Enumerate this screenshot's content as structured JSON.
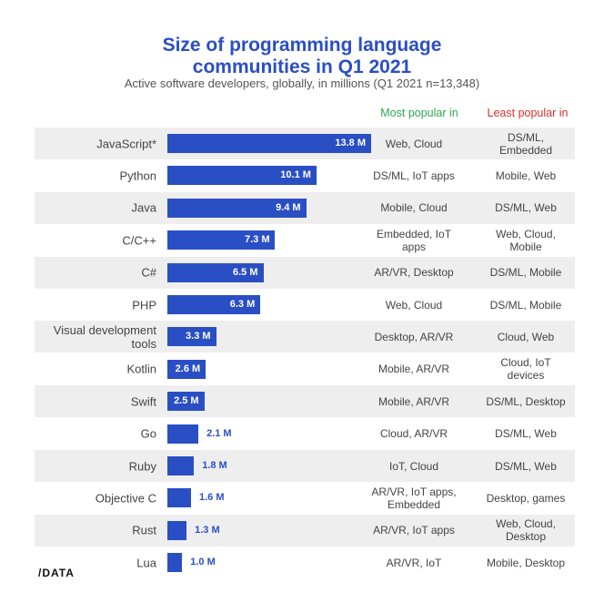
{
  "chart_data": {
    "type": "bar",
    "orientation": "horizontal",
    "title": "Size of programming language communities in Q1 2021",
    "title_lines": [
      "Size of programming language",
      "communities in Q1 2021"
    ],
    "subtitle": "Active software developers, globally, in millions (Q1 2021 n=13,348)",
    "unit_suffix": " M",
    "columns": {
      "most": "Most popular in",
      "least": "Least popular in"
    },
    "categories": [
      "JavaScript*",
      "Python",
      "Java",
      "C/C++",
      "C#",
      "PHP",
      "Visual development tools",
      "Kotlin",
      "Swift",
      "Go",
      "Ruby",
      "Objective C",
      "Rust",
      "Lua"
    ],
    "values": [
      13.8,
      10.1,
      9.4,
      7.3,
      6.5,
      6.3,
      3.3,
      2.6,
      2.5,
      2.1,
      1.8,
      1.6,
      1.3,
      1.0
    ],
    "labels": [
      "13.8 M",
      "10.1 M",
      "9.4 M",
      "7.3 M",
      "6.5 M",
      "6.3 M",
      "3.3 M",
      "2.6 M",
      "2.5 M",
      "2.1 M",
      "1.8 M",
      "1.6 M",
      "1.3 M",
      "1.0 M"
    ],
    "most_popular": [
      "Web, Cloud",
      "DS/ML, IoT apps",
      "Mobile, Cloud",
      "Embedded, IoT apps",
      "AR/VR, Desktop",
      "Web, Cloud",
      "Desktop, AR/VR",
      "Mobile, AR/VR",
      "Mobile, AR/VR",
      "Cloud, AR/VR",
      "IoT, Cloud",
      "AR/VR, IoT apps, Embedded",
      "AR/VR, IoT apps",
      "AR/VR, IoT"
    ],
    "least_popular": [
      "DS/ML, Embedded",
      "Mobile, Web",
      "DS/ML, Web",
      "Web, Cloud, Mobile",
      "DS/ML, Mobile",
      "DS/ML, Mobile",
      "Cloud, Web",
      "Cloud, IoT devices",
      "DS/ML, Desktop",
      "DS/ML, Web",
      "DS/ML, Web",
      "Desktop, games",
      "Web, Cloud, Desktop",
      "Mobile, Desktop"
    ],
    "colors": {
      "bar": "#2a4fc4",
      "most": "#2fa84f",
      "least": "#d9302c",
      "band": "#eeeeee"
    }
  },
  "logo": "/DATA"
}
